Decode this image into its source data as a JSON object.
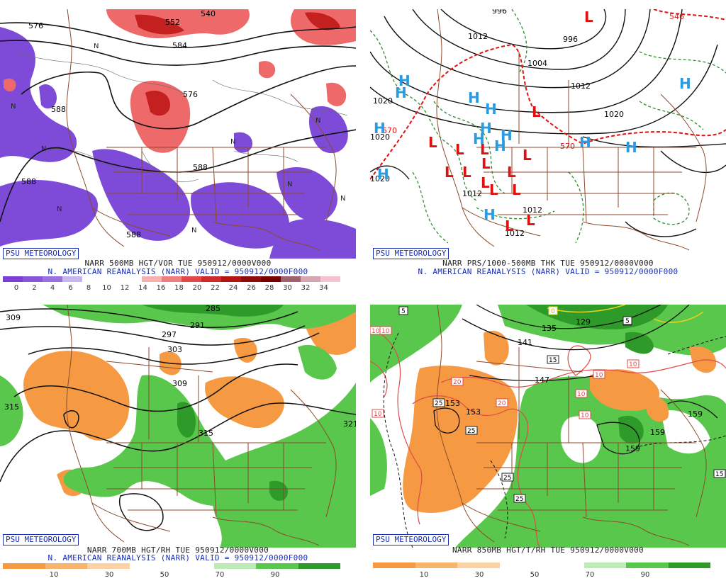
{
  "badge": "PSU METEOROLOGY",
  "panels": [
    {
      "id": "vor500",
      "title1": "NARR 500MB HGT/VOR TUE 950912/0000V000",
      "title2": "N. AMERICAN REANALYSIS (NARR) VALID = 950912/0000F000",
      "colorbar": [
        "#7a3fd6",
        "#8a55db",
        "#9a72e0",
        "#c8b7ee",
        "#ffffff",
        "#ffffff",
        "#ffffff",
        "#f7b0b0",
        "#ee7d7d",
        "#e24848",
        "#cf2a2a",
        "#b41414",
        "#8f0a0a",
        "#7a0000",
        "#a06070",
        "#d6a6b4",
        "#f5c3d0"
      ],
      "ticks": [
        "0",
        "2",
        "4",
        "6",
        "8",
        "10",
        "12",
        "14",
        "16",
        "18",
        "20",
        "22",
        "24",
        "26",
        "28",
        "30",
        "32",
        "34"
      ],
      "contour_labels": [
        "576",
        "552",
        "540",
        "584",
        "576",
        "588",
        "588",
        "588",
        "588"
      ]
    },
    {
      "id": "pres",
      "title1": "NARR PRS/1000-500MB THK TUE 950912/0000V000",
      "title2": "N. AMERICAN REANALYSIS (NARR) VALID = 950912/0000F000",
      "contour_labels": [
        "996",
        "1012",
        "996",
        "1004",
        "1012",
        "1020",
        "1020",
        "1012",
        "1012",
        "1020",
        "1012",
        "570",
        "570",
        "1020",
        "546"
      ],
      "highs": [
        "H",
        "H",
        "H",
        "H",
        "H",
        "H",
        "H",
        "H",
        "H",
        "H",
        "H",
        "H",
        "H",
        "H"
      ],
      "lows": [
        "L",
        "L",
        "L",
        "L",
        "L",
        "L",
        "L",
        "L",
        "L",
        "L",
        "L",
        "L",
        "L",
        "L",
        "L"
      ]
    },
    {
      "id": "rh700",
      "title1": "NARR 700MB HGT/RH TUE 950912/0000V000",
      "title2": "N. AMERICAN REANALYSIS (NARR) VALID = 950912/0000F000",
      "colorbar": [
        "#f59a42",
        "#f8b46c",
        "#fbd2a4",
        "#ffffff",
        "#ffffff",
        "#bdeab7",
        "#59c64c",
        "#2d9a2a"
      ],
      "ticks": [
        "10",
        "30",
        "50",
        "70",
        "90"
      ],
      "contour_labels": [
        "309",
        "285",
        "291",
        "297",
        "303",
        "309",
        "315",
        "315",
        "321"
      ]
    },
    {
      "id": "t850",
      "title1": "NARR 850MB HGT/T/RH TUE 950912/0000V000",
      "title2": "",
      "colorbar": [
        "#f59a42",
        "#f8b46c",
        "#fbd2a4",
        "#ffffff",
        "#ffffff",
        "#bdeab7",
        "#59c64c",
        "#2d9a2a"
      ],
      "ticks": [
        "10",
        "30",
        "50",
        "70",
        "90"
      ],
      "contour_labels": [
        "135",
        "129",
        "141",
        "147",
        "153",
        "153",
        "159",
        "159",
        "159"
      ],
      "temp_labels": [
        "5",
        "0",
        "5",
        "15",
        "10",
        "10",
        "10",
        "10",
        "10",
        "10",
        "20",
        "20",
        "25",
        "25",
        "25",
        "25",
        "15",
        "10",
        "5"
      ]
    }
  ]
}
